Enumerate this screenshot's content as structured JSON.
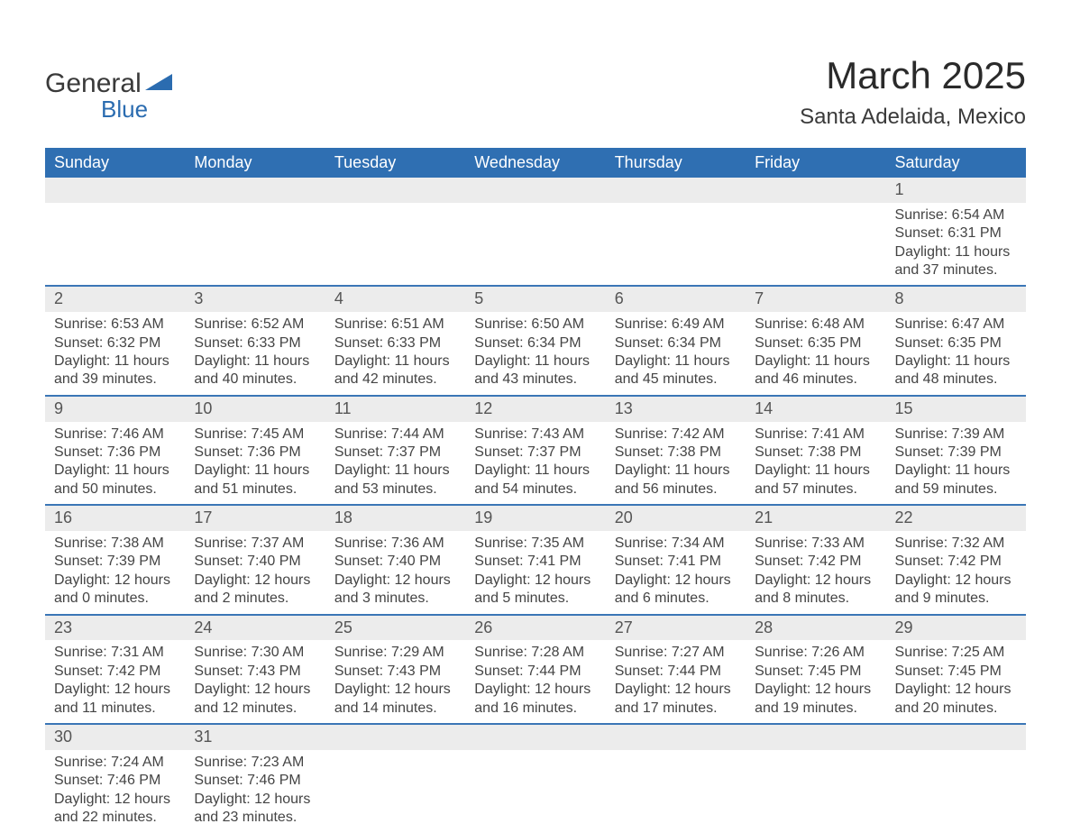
{
  "logo": {
    "word1": "General",
    "word2": "Blue"
  },
  "title": "March 2025",
  "location": "Santa Adelaida, Mexico",
  "colors": {
    "header_bg": "#2f6fb2",
    "header_text": "#ffffff",
    "row_sep": "#3b76b6",
    "daynum_bg": "#ececec",
    "body_text": "#444444",
    "page_bg": "#ffffff",
    "logo_blue": "#2b6cb0"
  },
  "layout": {
    "columns": 7,
    "rows": 6,
    "font_family": "Arial",
    "title_fontsize": 42,
    "location_fontsize": 24,
    "header_fontsize": 18,
    "daynum_fontsize": 18,
    "body_fontsize": 16
  },
  "day_headers": [
    "Sunday",
    "Monday",
    "Tuesday",
    "Wednesday",
    "Thursday",
    "Friday",
    "Saturday"
  ],
  "weeks": [
    [
      null,
      null,
      null,
      null,
      null,
      null,
      {
        "n": "1",
        "sunrise": "6:54 AM",
        "sunset": "6:31 PM",
        "daylight": "11 hours and 37 minutes."
      }
    ],
    [
      {
        "n": "2",
        "sunrise": "6:53 AM",
        "sunset": "6:32 PM",
        "daylight": "11 hours and 39 minutes."
      },
      {
        "n": "3",
        "sunrise": "6:52 AM",
        "sunset": "6:33 PM",
        "daylight": "11 hours and 40 minutes."
      },
      {
        "n": "4",
        "sunrise": "6:51 AM",
        "sunset": "6:33 PM",
        "daylight": "11 hours and 42 minutes."
      },
      {
        "n": "5",
        "sunrise": "6:50 AM",
        "sunset": "6:34 PM",
        "daylight": "11 hours and 43 minutes."
      },
      {
        "n": "6",
        "sunrise": "6:49 AM",
        "sunset": "6:34 PM",
        "daylight": "11 hours and 45 minutes."
      },
      {
        "n": "7",
        "sunrise": "6:48 AM",
        "sunset": "6:35 PM",
        "daylight": "11 hours and 46 minutes."
      },
      {
        "n": "8",
        "sunrise": "6:47 AM",
        "sunset": "6:35 PM",
        "daylight": "11 hours and 48 minutes."
      }
    ],
    [
      {
        "n": "9",
        "sunrise": "7:46 AM",
        "sunset": "7:36 PM",
        "daylight": "11 hours and 50 minutes."
      },
      {
        "n": "10",
        "sunrise": "7:45 AM",
        "sunset": "7:36 PM",
        "daylight": "11 hours and 51 minutes."
      },
      {
        "n": "11",
        "sunrise": "7:44 AM",
        "sunset": "7:37 PM",
        "daylight": "11 hours and 53 minutes."
      },
      {
        "n": "12",
        "sunrise": "7:43 AM",
        "sunset": "7:37 PM",
        "daylight": "11 hours and 54 minutes."
      },
      {
        "n": "13",
        "sunrise": "7:42 AM",
        "sunset": "7:38 PM",
        "daylight": "11 hours and 56 minutes."
      },
      {
        "n": "14",
        "sunrise": "7:41 AM",
        "sunset": "7:38 PM",
        "daylight": "11 hours and 57 minutes."
      },
      {
        "n": "15",
        "sunrise": "7:39 AM",
        "sunset": "7:39 PM",
        "daylight": "11 hours and 59 minutes."
      }
    ],
    [
      {
        "n": "16",
        "sunrise": "7:38 AM",
        "sunset": "7:39 PM",
        "daylight": "12 hours and 0 minutes."
      },
      {
        "n": "17",
        "sunrise": "7:37 AM",
        "sunset": "7:40 PM",
        "daylight": "12 hours and 2 minutes."
      },
      {
        "n": "18",
        "sunrise": "7:36 AM",
        "sunset": "7:40 PM",
        "daylight": "12 hours and 3 minutes."
      },
      {
        "n": "19",
        "sunrise": "7:35 AM",
        "sunset": "7:41 PM",
        "daylight": "12 hours and 5 minutes."
      },
      {
        "n": "20",
        "sunrise": "7:34 AM",
        "sunset": "7:41 PM",
        "daylight": "12 hours and 6 minutes."
      },
      {
        "n": "21",
        "sunrise": "7:33 AM",
        "sunset": "7:42 PM",
        "daylight": "12 hours and 8 minutes."
      },
      {
        "n": "22",
        "sunrise": "7:32 AM",
        "sunset": "7:42 PM",
        "daylight": "12 hours and 9 minutes."
      }
    ],
    [
      {
        "n": "23",
        "sunrise": "7:31 AM",
        "sunset": "7:42 PM",
        "daylight": "12 hours and 11 minutes."
      },
      {
        "n": "24",
        "sunrise": "7:30 AM",
        "sunset": "7:43 PM",
        "daylight": "12 hours and 12 minutes."
      },
      {
        "n": "25",
        "sunrise": "7:29 AM",
        "sunset": "7:43 PM",
        "daylight": "12 hours and 14 minutes."
      },
      {
        "n": "26",
        "sunrise": "7:28 AM",
        "sunset": "7:44 PM",
        "daylight": "12 hours and 16 minutes."
      },
      {
        "n": "27",
        "sunrise": "7:27 AM",
        "sunset": "7:44 PM",
        "daylight": "12 hours and 17 minutes."
      },
      {
        "n": "28",
        "sunrise": "7:26 AM",
        "sunset": "7:45 PM",
        "daylight": "12 hours and 19 minutes."
      },
      {
        "n": "29",
        "sunrise": "7:25 AM",
        "sunset": "7:45 PM",
        "daylight": "12 hours and 20 minutes."
      }
    ],
    [
      {
        "n": "30",
        "sunrise": "7:24 AM",
        "sunset": "7:46 PM",
        "daylight": "12 hours and 22 minutes."
      },
      {
        "n": "31",
        "sunrise": "7:23 AM",
        "sunset": "7:46 PM",
        "daylight": "12 hours and 23 minutes."
      },
      null,
      null,
      null,
      null,
      null
    ]
  ],
  "labels": {
    "sunrise": "Sunrise:",
    "sunset": "Sunset:",
    "daylight": "Daylight:"
  }
}
